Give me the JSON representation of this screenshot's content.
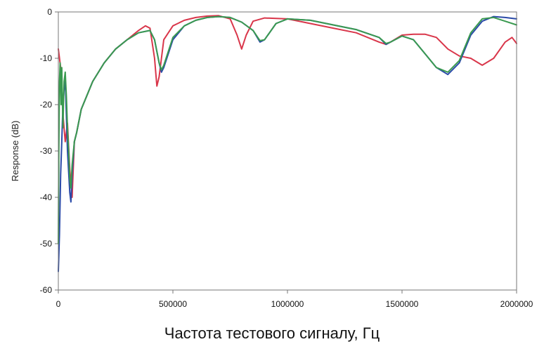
{
  "chart_data": {
    "type": "line",
    "xlabel": "Частота тестового сигналу, Гц",
    "ylabel": "Response (dB)",
    "xlim": [
      0,
      2000000
    ],
    "ylim": [
      -60,
      0
    ],
    "xticks": [
      0,
      500000,
      1000000,
      1500000,
      2000000
    ],
    "yticks": [
      0,
      -10,
      -20,
      -30,
      -40,
      -50,
      -60
    ],
    "xtick_labels": [
      "0",
      "500000",
      "1000000",
      "1500000",
      "2000000"
    ],
    "ytick_labels": [
      "0",
      "-10",
      "-20",
      "-30",
      "-40",
      "-50",
      "-60"
    ],
    "grid": false,
    "series": [
      {
        "color": "#d9364a",
        "x": [
          0,
          10000,
          20000,
          30000,
          40000,
          50000,
          60000,
          70000,
          80000,
          100000,
          150000,
          200000,
          250000,
          300000,
          350000,
          380000,
          400000,
          420000,
          430000,
          440000,
          460000,
          500000,
          550000,
          600000,
          650000,
          700000,
          750000,
          780000,
          800000,
          820000,
          850000,
          900000,
          1000000,
          1100000,
          1200000,
          1300000,
          1400000,
          1430000,
          1450000,
          1500000,
          1550000,
          1600000,
          1650000,
          1700000,
          1750000,
          1800000,
          1850000,
          1900000,
          1950000,
          1980000,
          2000000
        ],
        "y": [
          -8,
          -12,
          -22,
          -28,
          -24,
          -34,
          -40,
          -28,
          -26,
          -21,
          -15,
          -11,
          -8,
          -6,
          -4,
          -3,
          -3.5,
          -10,
          -16,
          -14,
          -6,
          -3,
          -1.8,
          -1.2,
          -0.9,
          -0.8,
          -1.5,
          -5,
          -8,
          -5,
          -2,
          -1.3,
          -1.5,
          -2.5,
          -3.5,
          -4.5,
          -6.5,
          -7,
          -6.5,
          -5,
          -4.8,
          -4.8,
          -5.5,
          -8,
          -9.5,
          -10,
          -11.5,
          -10,
          -6.5,
          -5.5,
          -6.8
        ]
      },
      {
        "color": "#2a4aa8",
        "x": [
          0,
          5000,
          10000,
          15000,
          20000,
          30000,
          40000,
          50000,
          55000,
          60000,
          70000,
          80000,
          100000,
          150000,
          200000,
          250000,
          300000,
          350000,
          400000,
          420000,
          440000,
          450000,
          460000,
          500000,
          550000,
          600000,
          650000,
          700000,
          750000,
          800000,
          850000,
          880000,
          900000,
          950000,
          1000000,
          1100000,
          1200000,
          1300000,
          1400000,
          1430000,
          1450000,
          1500000,
          1550000,
          1600000,
          1650000,
          1700000,
          1750000,
          1800000,
          1850000,
          1900000,
          1950000,
          2000000
        ],
        "y": [
          -56,
          -48,
          -35,
          -28,
          -20,
          -14,
          -30,
          -39,
          -41,
          -35,
          -28,
          -26,
          -21,
          -15,
          -11,
          -8,
          -6,
          -4.5,
          -4,
          -6,
          -11,
          -13,
          -12,
          -6,
          -3,
          -1.8,
          -1.2,
          -1.0,
          -1.2,
          -2.2,
          -4,
          -6.5,
          -6,
          -2.5,
          -1.5,
          -1.8,
          -2.8,
          -3.8,
          -5.5,
          -7,
          -6.5,
          -5.2,
          -6,
          -9,
          -12,
          -13.5,
          -11,
          -5,
          -2,
          -1,
          -1.2,
          -1.5
        ]
      },
      {
        "color": "#3a9a50",
        "x": [
          0,
          2000,
          5000,
          8000,
          12000,
          15000,
          20000,
          25000,
          30000,
          35000,
          40000,
          45000,
          50000,
          55000,
          60000,
          70000,
          80000,
          100000,
          150000,
          200000,
          250000,
          300000,
          350000,
          400000,
          420000,
          440000,
          450000,
          460000,
          500000,
          550000,
          600000,
          650000,
          700000,
          750000,
          800000,
          850000,
          880000,
          900000,
          950000,
          1000000,
          1100000,
          1200000,
          1300000,
          1400000,
          1430000,
          1450000,
          1500000,
          1550000,
          1600000,
          1650000,
          1700000,
          1750000,
          1800000,
          1850000,
          1900000,
          1950000,
          2000000
        ],
        "y": [
          -50,
          -30,
          -15,
          -11,
          -20,
          -12,
          -25,
          -15,
          -13,
          -18,
          -25,
          -30,
          -36,
          -38,
          -33,
          -28,
          -26,
          -21,
          -15,
          -11,
          -8,
          -6,
          -4.5,
          -4,
          -6,
          -11,
          -12.5,
          -11.5,
          -5.5,
          -3,
          -1.8,
          -1.2,
          -1.0,
          -1.2,
          -2.2,
          -4,
          -6.2,
          -6,
          -2.5,
          -1.5,
          -1.8,
          -2.8,
          -3.8,
          -5.5,
          -6.8,
          -6.5,
          -5.2,
          -6,
          -9,
          -12,
          -13,
          -10.5,
          -4.5,
          -1.5,
          -1.2,
          -2,
          -2.8
        ]
      }
    ]
  }
}
